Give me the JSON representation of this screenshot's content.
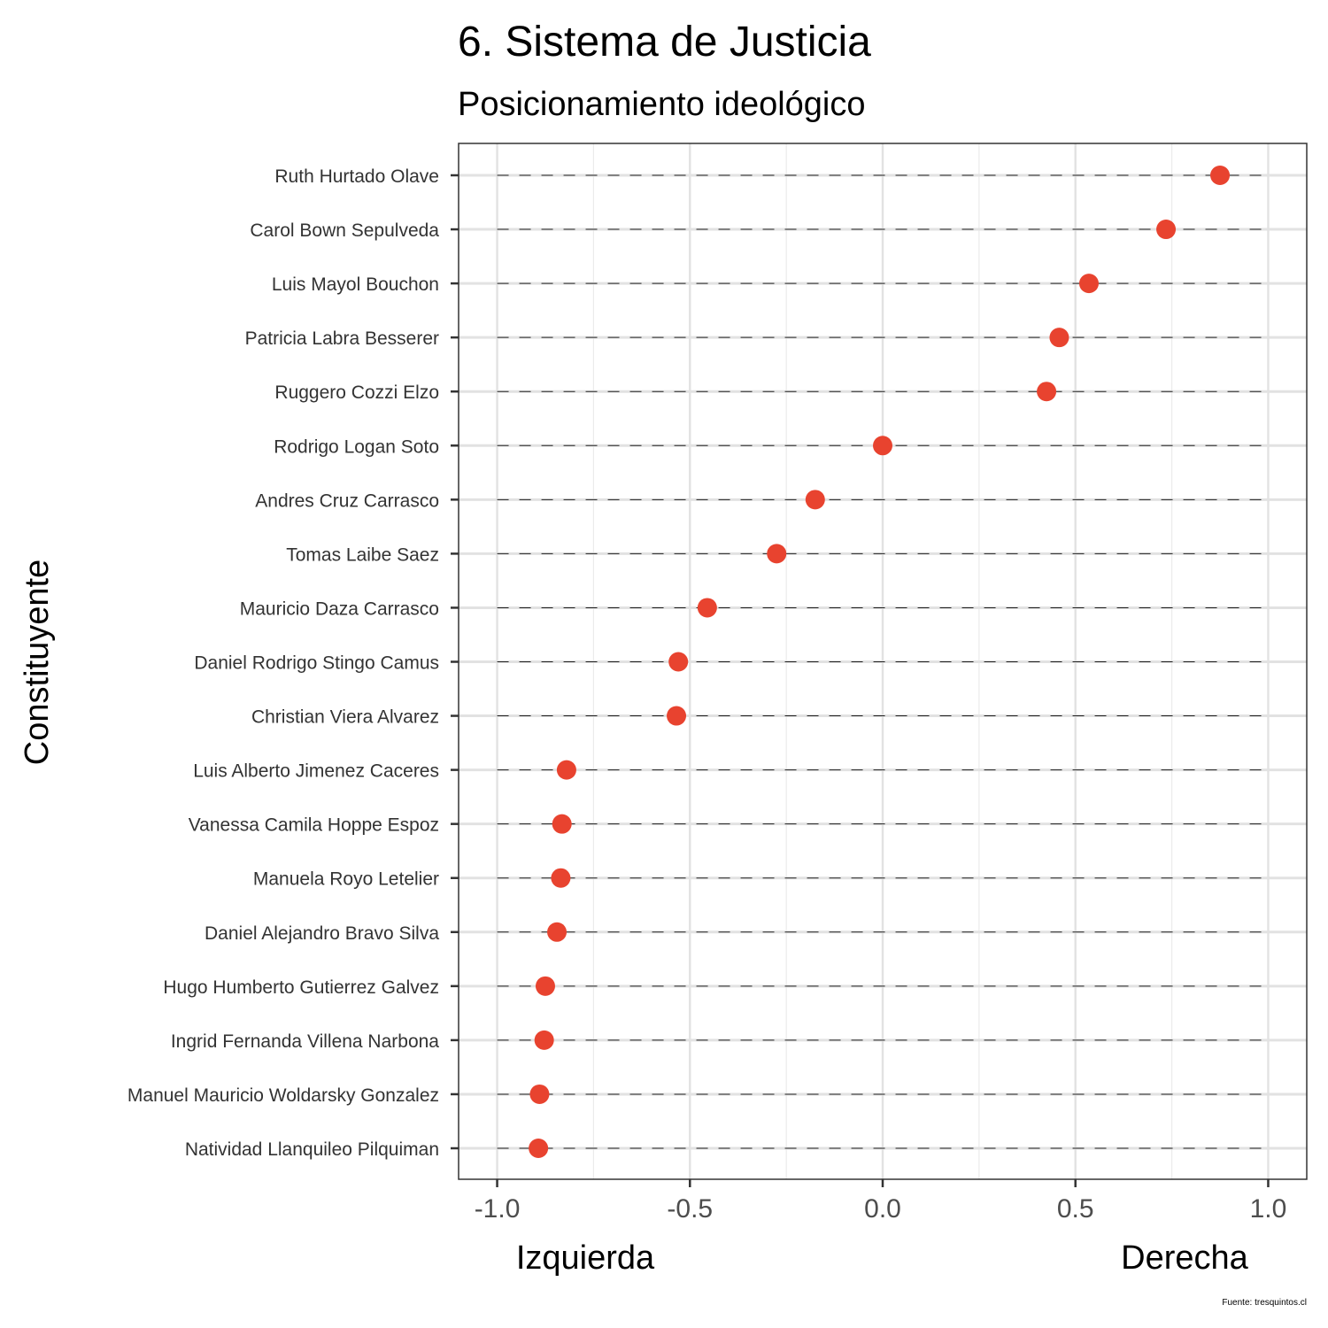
{
  "chart_data": {
    "type": "scatter",
    "title": "6. Sistema de Justicia",
    "subtitle": "Posicionamiento ideológico",
    "ylabel": "Constituyente",
    "xlabel_left": "Izquierda",
    "xlabel_right": "Derecha",
    "source": "Fuente: tresquintos.cl",
    "xlim": [
      -1.1,
      1.1
    ],
    "xticks": [
      "-1.0",
      "-0.5",
      "0.0",
      "0.5",
      "1.0"
    ],
    "xtick_values": [
      -1.0,
      -0.5,
      0.0,
      0.5,
      1.0
    ],
    "grid": true,
    "point_color": "#E8432F",
    "points": [
      {
        "name": "Ruth Hurtado Olave",
        "x": 0.875
      },
      {
        "name": "Carol Bown Sepulveda",
        "x": 0.735
      },
      {
        "name": "Luis Mayol Bouchon",
        "x": 0.535
      },
      {
        "name": "Patricia Labra Besserer",
        "x": 0.458
      },
      {
        "name": "Ruggero Cozzi Elzo",
        "x": 0.425
      },
      {
        "name": "Rodrigo Logan Soto",
        "x": 0.0
      },
      {
        "name": "Andres Cruz Carrasco",
        "x": -0.175
      },
      {
        "name": "Tomas Laibe Saez",
        "x": -0.275
      },
      {
        "name": "Mauricio Daza Carrasco",
        "x": -0.455
      },
      {
        "name": "Daniel Rodrigo Stingo Camus",
        "x": -0.53
      },
      {
        "name": "Christian Viera Alvarez",
        "x": -0.535
      },
      {
        "name": "Luis Alberto Jimenez Caceres",
        "x": -0.82
      },
      {
        "name": "Vanessa Camila Hoppe Espoz",
        "x": -0.832
      },
      {
        "name": "Manuela Royo Letelier",
        "x": -0.835
      },
      {
        "name": "Daniel Alejandro Bravo Silva",
        "x": -0.845
      },
      {
        "name": "Hugo Humberto Gutierrez Galvez",
        "x": -0.875
      },
      {
        "name": "Ingrid Fernanda Villena Narbona",
        "x": -0.878
      },
      {
        "name": "Manuel Mauricio Woldarsky Gonzalez",
        "x": -0.89
      },
      {
        "name": "Natividad Llanquileo Pilquiman",
        "x": -0.893
      }
    ]
  }
}
